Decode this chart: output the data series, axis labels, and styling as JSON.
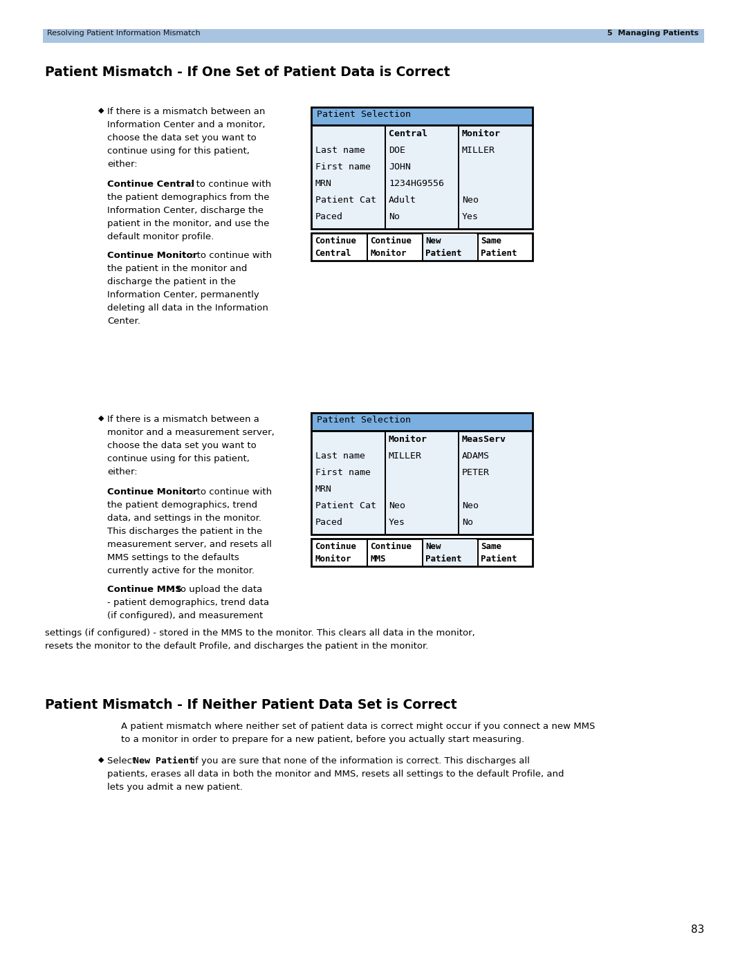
{
  "page_bg": "#ffffff",
  "header_bg": "#a8c4e0",
  "header_text_left": "Resolving Patient Information Mismatch",
  "header_text_right": "5  Managing Patients",
  "section1_title": "Patient Mismatch - If One Set of Patient Data is Correct",
  "section2_title": "Patient Mismatch - If Neither Patient Data Set is Correct",
  "table1_header": "Patient Selection",
  "table1_header_bg": "#7aafe0",
  "table1_body_bg": "#e8f0f8",
  "table1_rows": [
    [
      "",
      "Central",
      "Monitor"
    ],
    [
      "Last name",
      "DOE",
      "MILLER"
    ],
    [
      "First name",
      "JOHN",
      ""
    ],
    [
      "MRN",
      "1234HG9556",
      ""
    ],
    [
      "Patient Cat",
      "Adult",
      "Neo"
    ],
    [
      "Paced",
      "No",
      "Yes"
    ]
  ],
  "table1b_labels": [
    "Continue\nCentral",
    "Continue\nMonitor",
    "New\nPatient",
    "Same\nPatient"
  ],
  "table2_header": "Patient Selection",
  "table2_header_bg": "#7aafe0",
  "table2_body_bg": "#e8f0f8",
  "table2_rows": [
    [
      "",
      "Monitor",
      "MeasServ"
    ],
    [
      "Last name",
      "MILLER",
      "ADAMS"
    ],
    [
      "First name",
      "",
      "PETER"
    ],
    [
      "MRN",
      "",
      ""
    ],
    [
      "Patient Cat",
      "Neo",
      "Neo"
    ],
    [
      "Paced",
      "Yes",
      "No"
    ]
  ],
  "table2b_labels": [
    "Continue\nMonitor",
    "Continue\nMMS",
    "New\nPatient",
    "Same\nPatient"
  ],
  "page_number": "83"
}
